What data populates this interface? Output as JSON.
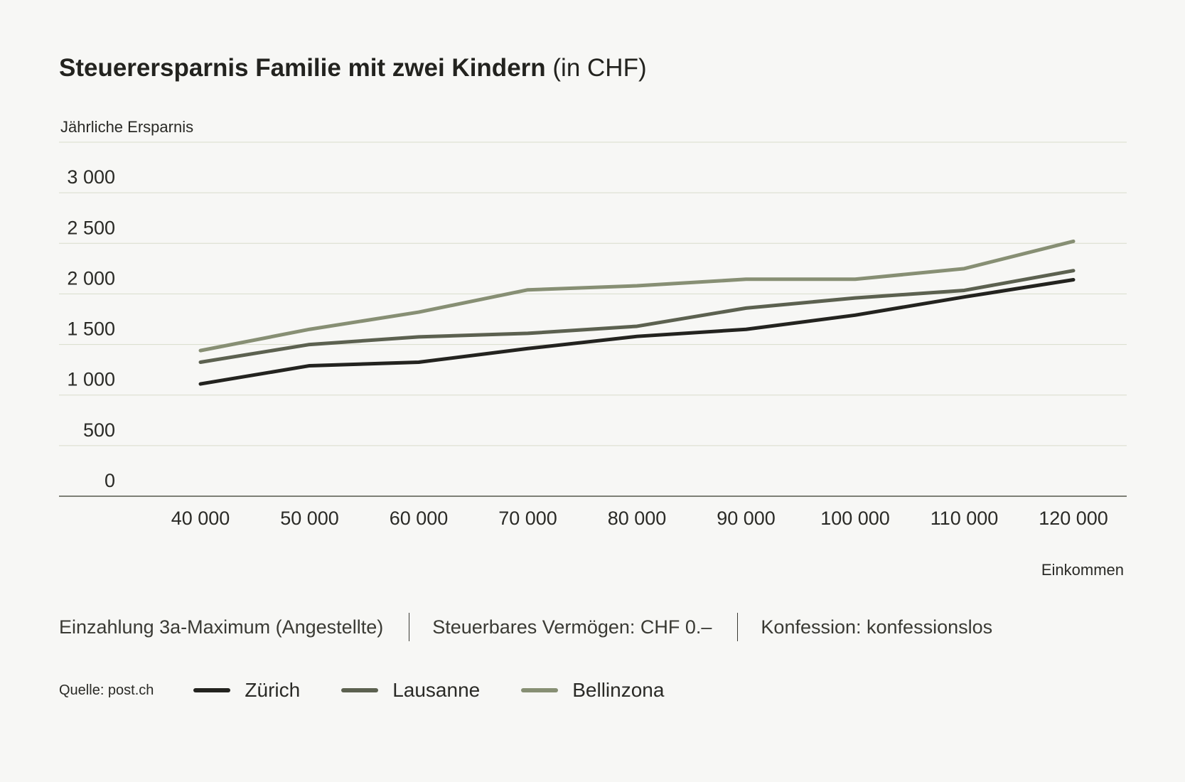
{
  "title": {
    "main": "Steuerersparnis Familie mit zwei Kindern",
    "unit": "(in CHF)"
  },
  "notes": [
    "Einzahlung 3a-Maximum (Angestellte)",
    "Steuerbares Vermögen: CHF 0.–",
    "Konfession: konfessionslos"
  ],
  "source": "Quelle: post.ch",
  "chart_data": {
    "type": "line",
    "title": "Steuerersparnis Familie mit zwei Kindern (in CHF)",
    "ylabel": "Jährliche Ersparnis",
    "xlabel": "Einkommen",
    "x": [
      40000,
      50000,
      60000,
      70000,
      80000,
      90000,
      100000,
      110000,
      120000
    ],
    "x_tick_labels": [
      "40 000",
      "50 000",
      "60 000",
      "70 000",
      "80 000",
      "90 000",
      "100 000",
      "110 000",
      "120 000"
    ],
    "y_ticks": [
      0,
      500,
      1000,
      1500,
      2000,
      2500,
      3000
    ],
    "y_tick_labels": [
      "0",
      "500",
      "1 000",
      "1 500",
      "2 000",
      "2 500",
      "3 000"
    ],
    "ylim": [
      0,
      3500
    ],
    "grid": true,
    "legend_position": "bottom",
    "series": [
      {
        "name": "Zürich",
        "color": "#23231f",
        "values": [
          1110,
          1290,
          1325,
          1460,
          1580,
          1650,
          1790,
          1970,
          2140
        ]
      },
      {
        "name": "Lausanne",
        "color": "#5c6150",
        "values": [
          1325,
          1500,
          1575,
          1610,
          1680,
          1860,
          1960,
          2035,
          2230
        ]
      },
      {
        "name": "Bellinzona",
        "color": "#878f74",
        "values": [
          1440,
          1650,
          1820,
          2040,
          2080,
          2145,
          2145,
          2250,
          2520
        ]
      }
    ]
  }
}
